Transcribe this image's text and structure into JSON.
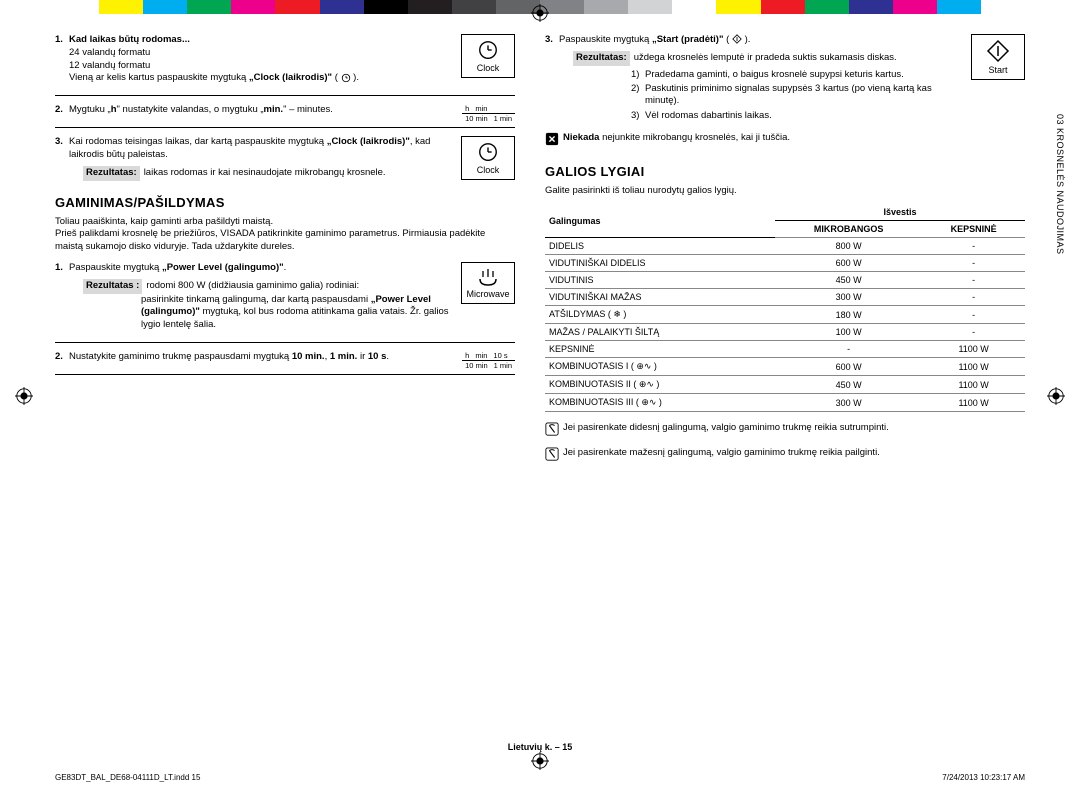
{
  "colorbar": [
    "#ffffff",
    "#fff200",
    "#00aeef",
    "#00a651",
    "#ec008c",
    "#ed1c24",
    "#2e3192",
    "#000000",
    "#231f20",
    "#414042",
    "#636466",
    "#808285",
    "#a7a9ac",
    "#d1d3d4",
    "#ffffff",
    "#fff200",
    "#ed1c24",
    "#00a651",
    "#2e3192",
    "#ec008c",
    "#00aeef",
    "#ffffff"
  ],
  "side_tab": "03 KROSNELĖS NAUDOJIMAS",
  "left": {
    "step1": {
      "title": "Kad laikas būtų rodomas...",
      "line1": "24 valandų formatu",
      "line2": "12 valandų formatu",
      "line3_a": "Vieną ar kelis kartus paspauskite mygtuką ",
      "line3_b": "„Clock (laikrodis)\"",
      "clock_label": "Clock"
    },
    "step2": {
      "text_a": "Mygtuku „",
      "text_b": "h",
      "text_c": "\" nustatykite valandas, o mygtuku „",
      "text_d": "min.",
      "text_e": "\" – minutes.",
      "tb_h": "h",
      "tb_min": "min",
      "tb_10min": "10 min",
      "tb_1min": "1 min"
    },
    "step3": {
      "text_a": "Kai rodomas teisingas laikas, dar kartą paspauskite mygtuką ",
      "text_b": "„Clock (laikrodis)\"",
      "text_c": ", kad laikrodis būtų paleistas.",
      "result_lbl": "Rezultatas:",
      "result_txt": "laikas rodomas ir kai nesinaudojate mikrobangų krosnele.",
      "clock_label": "Clock"
    },
    "h2": "GAMINIMAS/PAŠILDYMAS",
    "intro1": "Toliau paaiškinta, kaip gaminti arba pašildyti maistą.",
    "intro2": "Prieš palikdami krosnelę be priežiūros, VISADA patikrinkite gaminimo parametrus. Pirmiausia padėkite maistą sukamojo disko viduryje. Tada uždarykite dureles.",
    "c_step1": {
      "text_a": "Paspauskite mygtuką ",
      "text_b": "„Power Level (galingumo)\"",
      "text_c": ".",
      "mw_label": "Microwave",
      "result_lbl": "Rezultatas :",
      "result1": "rodomi 800 W (didžiausia gaminimo galia) rodiniai:",
      "result2_a": "pasirinkite tinkamą galingumą, dar kartą paspausdami ",
      "result2_b": "„Power Level (galingumo)\"",
      "result2_c": " mygtuką, kol bus rodoma atitinkama galia vatais. Žr. galios lygio lentelę šalia."
    },
    "c_step2": {
      "text_a": "Nustatykite gaminimo trukmę paspausdami mygtuką ",
      "text_b": "10 min.",
      "text_c": ", ",
      "text_d": "1 min.",
      "text_e": " ir ",
      "text_f": "10 s",
      "text_g": ".",
      "tb_h": "h",
      "tb_min": "min",
      "tb_10s": "10 s",
      "tb_10min": "10 min",
      "tb_1min": "1 min"
    }
  },
  "right": {
    "step3": {
      "text_a": "Paspauskite mygtuką ",
      "text_b": "„Start (pradėti)\"",
      "start_label": "Start",
      "result_lbl": "Rezultatas:",
      "result_txt": "uždega krosnelės lemputė ir pradeda suktis sukamasis diskas.",
      "s1": "Pradedama gaminti, o baigus krosnelė supypsi keturis kartus.",
      "s2": "Paskutinis priminimo signalas supypsės 3 kartus (po vieną kartą kas minutę).",
      "s3": "Vėl rodomas dabartinis laikas."
    },
    "warn_a": "Niekada",
    "warn_b": " nejunkite mikrobangų krosnelės, kai ji tuščia.",
    "h2": "GALIOS LYGIAI",
    "intro": "Galite pasirinkti iš toliau nurodytų galios lygių.",
    "table": {
      "h1": "Galingumas",
      "h2": "Išvestis",
      "h2a": "MIKROBANGOS",
      "h2b": "KEPSNINĖ",
      "rows": [
        [
          "DIDELIS",
          "800 W",
          "-"
        ],
        [
          "VIDUTINIŠKAI DIDELIS",
          "600 W",
          "-"
        ],
        [
          "VIDUTINIS",
          "450 W",
          "-"
        ],
        [
          "VIDUTINIŠKAI MAŽAS",
          "300 W",
          "-"
        ],
        [
          "ATŠILDYMAS ( ❄ )",
          "180 W",
          "-"
        ],
        [
          "MAŽAS / PALAIKYTI ŠILTĄ",
          "100 W",
          "-"
        ],
        [
          "KEPSNINĖ",
          "-",
          "1100 W"
        ],
        [
          "KOMBINUOTASIS I ( ⊕∿ )",
          "600 W",
          "1100 W"
        ],
        [
          "KOMBINUOTASIS II ( ⊕∿ )",
          "450 W",
          "1100 W"
        ],
        [
          "KOMBINUOTASIS III ( ⊕∿ )",
          "300 W",
          "1100 W"
        ]
      ]
    },
    "note1": "Jei pasirenkate didesnį galingumą, valgio gaminimo trukmę reikia sutrumpinti.",
    "note2": "Jei pasirenkate mažesnį galingumą, valgio gaminimo trukmę reikia pailginti."
  },
  "footer": "Lietuvių k. – 15",
  "meta_left": "GE83DT_BAL_DE68-04111D_LT.indd   15",
  "meta_right": "7/24/2013   10:23:17 AM"
}
